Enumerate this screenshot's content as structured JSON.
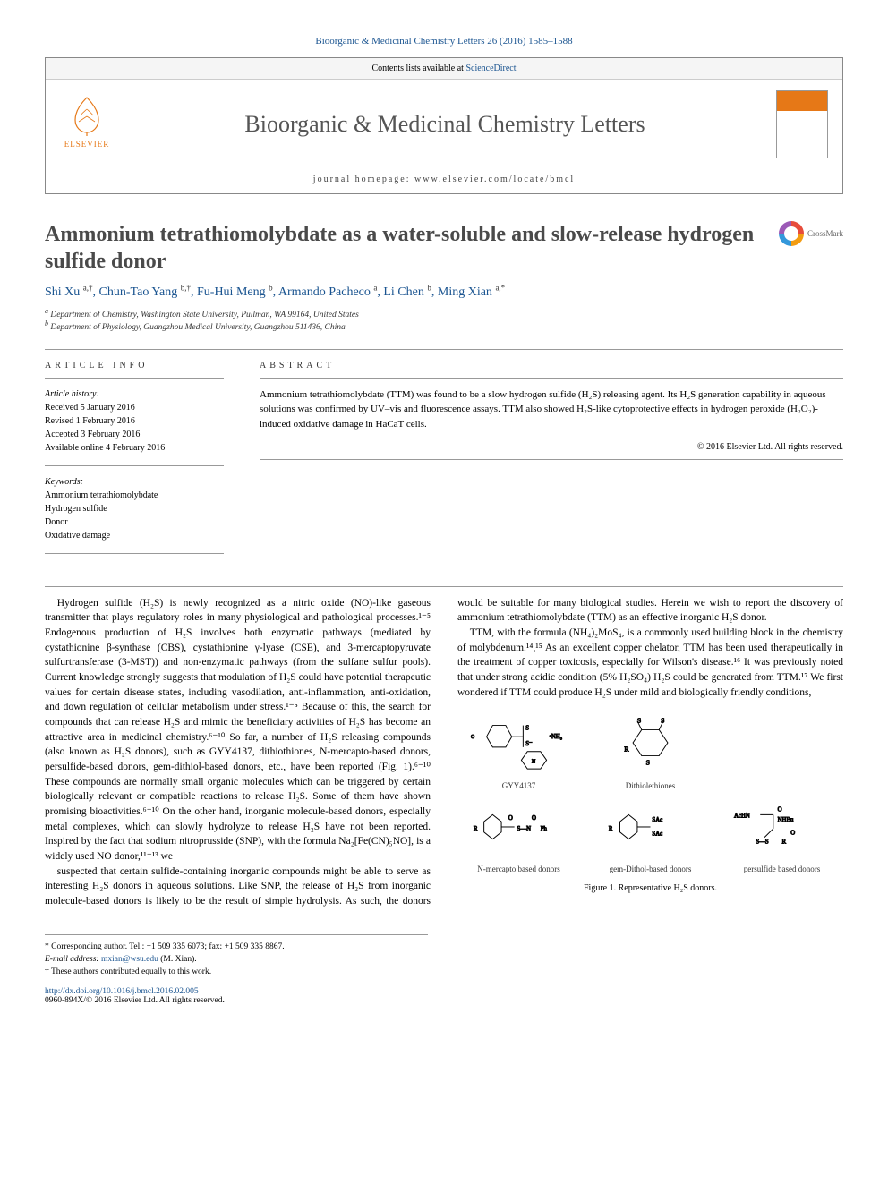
{
  "citation": "Bioorganic & Medicinal Chemistry Letters 26 (2016) 1585–1588",
  "header": {
    "contents_text": "Contents lists available at ",
    "contents_link": "ScienceDirect",
    "journal": "Bioorganic & Medicinal Chemistry Letters",
    "homepage_label": "journal homepage: www.elsevier.com/locate/bmcl",
    "publisher": "ELSEVIER",
    "publisher_color": "#e67817"
  },
  "title": "Ammonium tetrathiomolybdate as a water-soluble and slow-release hydrogen sulfide donor",
  "crossmark_label": "CrossMark",
  "authors_html": "Shi Xu <sup>a,†</sup>, Chun-Tao Yang <sup>b,†</sup>, Fu-Hui Meng <sup>b</sup>, Armando Pacheco <sup>a</sup>, Li Chen <sup>b</sup>, Ming Xian <sup>a,*</sup>",
  "affiliations": {
    "a": "Department of Chemistry, Washington State University, Pullman, WA 99164, United States",
    "b": "Department of Physiology, Guangzhou Medical University, Guangzhou 511436, China"
  },
  "info": {
    "head1": "ARTICLE INFO",
    "history_label": "Article history:",
    "history": [
      "Received 5 January 2016",
      "Revised 1 February 2016",
      "Accepted 3 February 2016",
      "Available online 4 February 2016"
    ],
    "keywords_label": "Keywords:",
    "keywords": [
      "Ammonium tetrathiomolybdate",
      "Hydrogen sulfide",
      "Donor",
      "Oxidative damage"
    ]
  },
  "abstract": {
    "head": "ABSTRACT",
    "text": "Ammonium tetrathiomolybdate (TTM) was found to be a slow hydrogen sulfide (H₂S) releasing agent. Its H₂S generation capability in aqueous solutions was confirmed by UV–vis and fluorescence assays. TTM also showed H₂S-like cytoprotective effects in hydrogen peroxide (H₂O₂)-induced oxidative damage in HaCaT cells.",
    "copyright": "© 2016 Elsevier Ltd. All rights reserved."
  },
  "body": {
    "p1": "Hydrogen sulfide (H₂S) is newly recognized as a nitric oxide (NO)-like gaseous transmitter that plays regulatory roles in many physiological and pathological processes.¹⁻⁵ Endogenous production of H₂S involves both enzymatic pathways (mediated by cystathionine β-synthase (CBS), cystathionine γ-lyase (CSE), and 3-mercaptopyruvate sulfurtransferase (3-MST)) and non-enzymatic pathways (from the sulfane sulfur pools). Current knowledge strongly suggests that modulation of H₂S could have potential therapeutic values for certain disease states, including vasodilation, anti-inflammation, anti-oxidation, and down regulation of cellular metabolism under stress.¹⁻⁵ Because of this, the search for compounds that can release H₂S and mimic the beneficiary activities of H₂S has become an attractive area in medicinal chemistry.⁶⁻¹⁰ So far, a number of H₂S releasing compounds (also known as H₂S donors), such as GYY4137, dithiothiones, N-mercapto-based donors, persulfide-based donors, gem-dithiol-based donors, etc., have been reported (Fig. 1).⁶⁻¹⁰ These compounds are normally small organic molecules which can be triggered by certain biologically relevant or compatible reactions to release H₂S. Some of them have shown promising bioactivities.⁶⁻¹⁰ On the other hand, inorganic molecule-based donors, especially metal complexes, which can slowly hydrolyze to release H₂S have not been reported. Inspired by the fact that sodium nitroprusside (SNP), with the formula Na₂[Fe(CN)₅NO], is a widely used NO donor,¹¹⁻¹³ we",
    "p2": "suspected that certain sulfide-containing inorganic compounds might be able to serve as interesting H₂S donors in aqueous solutions. Like SNP, the release of H₂S from inorganic molecule-based donors is likely to be the result of simple hydrolysis. As such, the donors would be suitable for many biological studies. Herein we wish to report the discovery of ammonium tetrathiomolybdate (TTM) as an effective inorganic H₂S donor.",
    "p3": "TTM, with the formula (NH₄)₂MoS₄, is a commonly used building block in the chemistry of molybdenum.¹⁴,¹⁵ As an excellent copper chelator, TTM has been used therapeutically in the treatment of copper toxicosis, especially for Wilson's disease.¹⁶ It was previously noted that under strong acidic condition (5% H₂SO₄) H₂S could be generated from TTM.¹⁷ We first wondered if TTM could produce H₂S under mild and biologically friendly conditions,"
  },
  "figure": {
    "labels": [
      "GYY4137",
      "Dithiolethiones",
      "",
      "N-mercapto based donors",
      "gem-Dithol-based donors",
      "persulfide based donors"
    ],
    "caption": "Figure 1. Representative H₂S donors."
  },
  "footer": {
    "corr": "* Corresponding author. Tel.: +1 509 335 6073; fax: +1 509 335 8867.",
    "email_label": "E-mail address: ",
    "email": "mxian@wsu.edu",
    "email_name": " (M. Xian).",
    "equal": "† These authors contributed equally to this work.",
    "doi_url": "http://dx.doi.org/10.1016/j.bmcl.2016.02.005",
    "issn": "0960-894X/© 2016 Elsevier Ltd. All rights reserved."
  },
  "colors": {
    "link": "#1a5490",
    "heading": "#4a4a4a",
    "orange": "#e67817"
  }
}
